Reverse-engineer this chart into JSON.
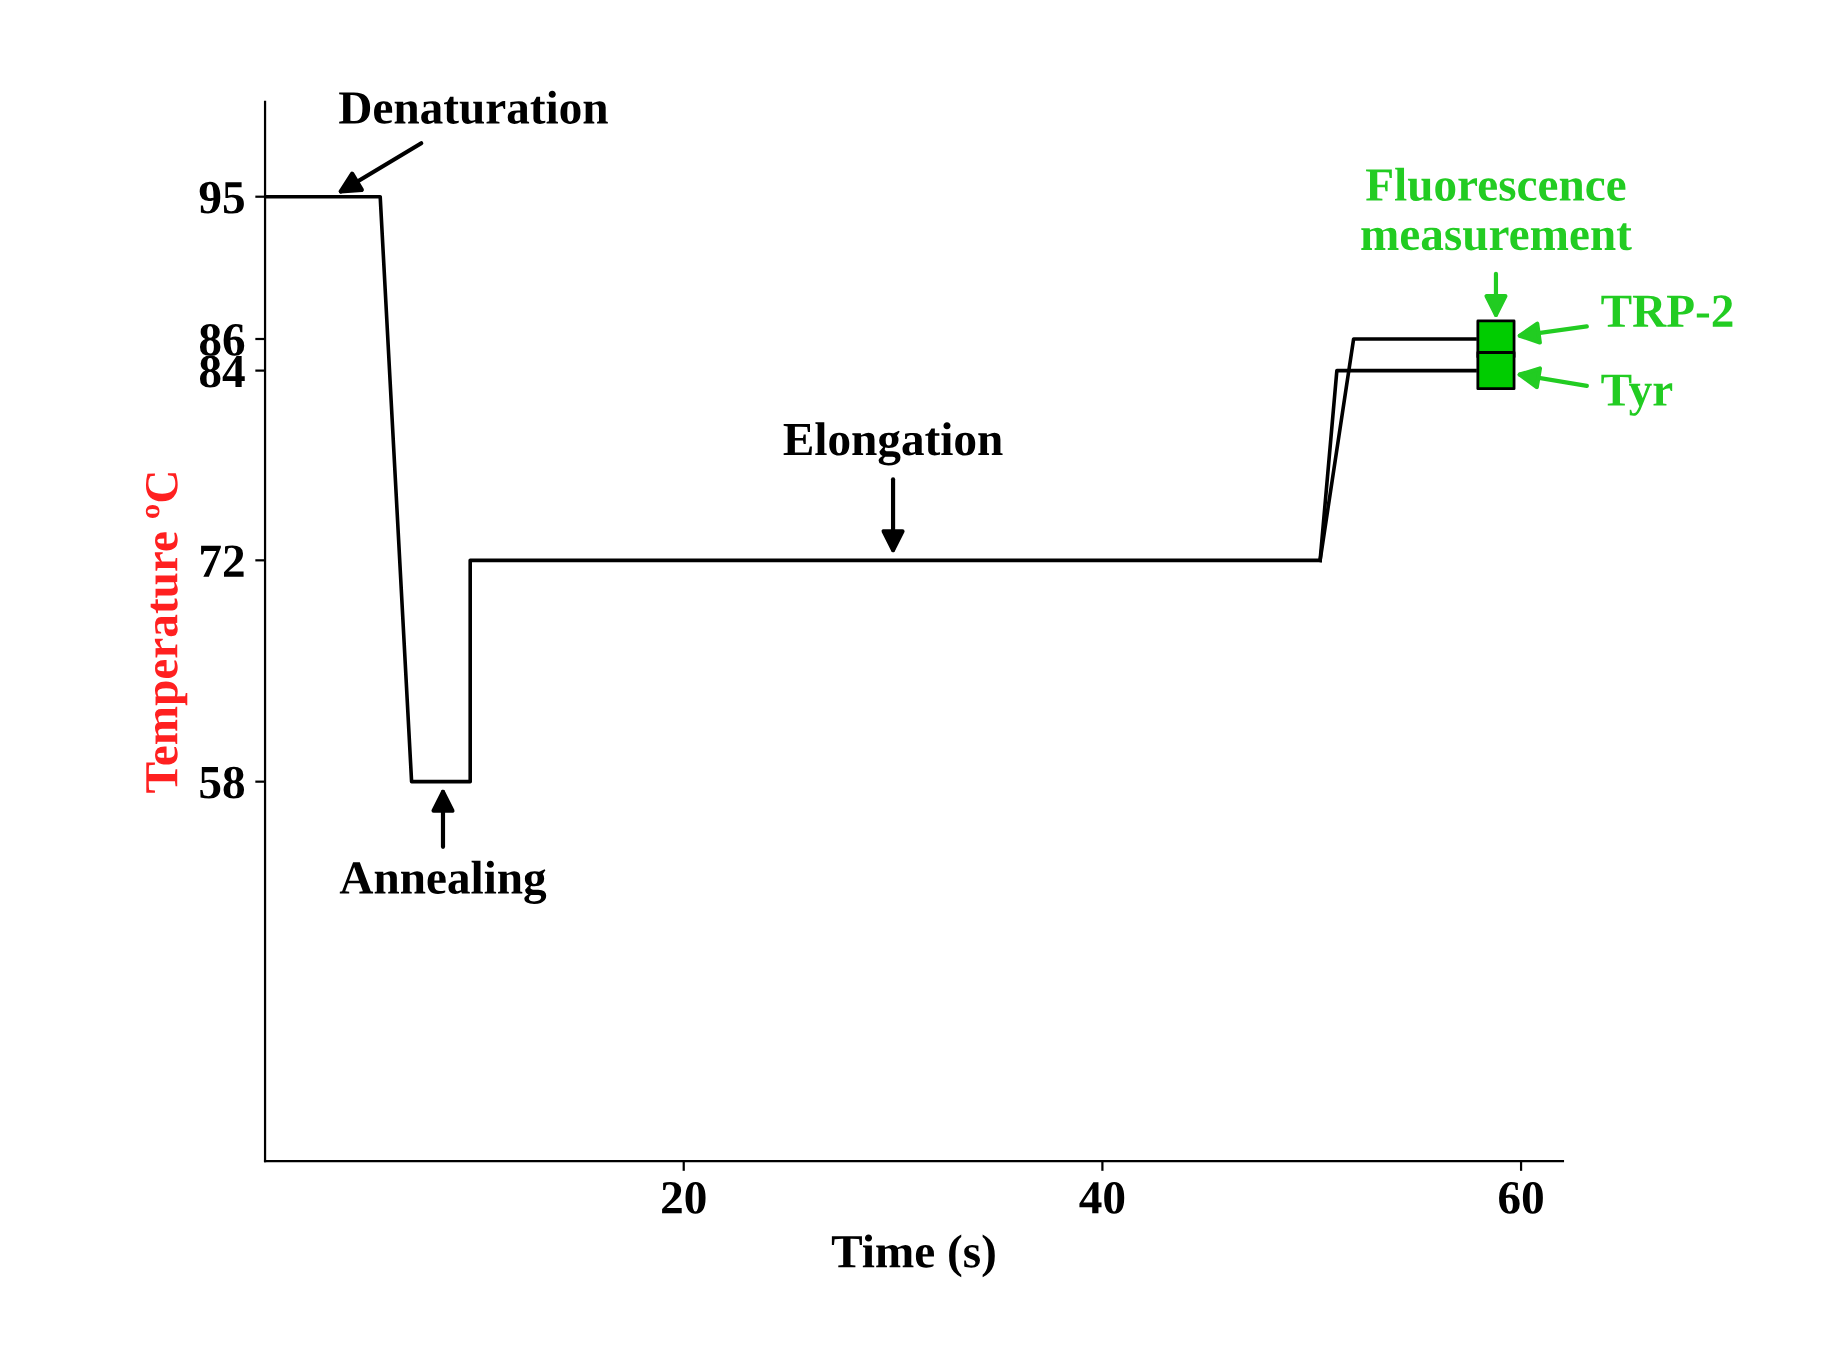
{
  "chart_data": {
    "type": "line",
    "xlabel": "Time (s)",
    "ylabel": "Temperature ºC",
    "xlim": [
      0,
      62
    ],
    "xticks": [
      20,
      40,
      60
    ],
    "ylim": [
      34,
      101
    ],
    "yticks": [
      58,
      72,
      84,
      86,
      95
    ],
    "grid": false,
    "legend": false,
    "marker": "none",
    "line_style": "solid",
    "series": [
      {
        "color": "#000000",
        "x": [
          0,
          5.5,
          7,
          9.8,
          9.8,
          50.4
        ],
        "values": [
          95,
          95,
          58,
          58,
          72,
          72
        ]
      },
      {
        "color": "#000000",
        "x": [
          50.4,
          52,
          57.8
        ],
        "values": [
          72,
          86,
          86
        ]
      },
      {
        "color": "#000000",
        "x": [
          50.4,
          51.2,
          57.8
        ],
        "values": [
          72,
          84,
          84
        ]
      },
      {
        "type": "scatter",
        "marker": "square",
        "color": "#00cc00",
        "x": [
          58.8
        ],
        "values": [
          86
        ]
      },
      {
        "type": "scatter",
        "marker": "square",
        "color": "#00cc00",
        "x": [
          58.8
        ],
        "values": [
          84
        ]
      }
    ],
    "annotations": [
      {
        "text": "Denaturation",
        "x": 2.5,
        "y": 95
      },
      {
        "text": "Annealing",
        "x": 8.5,
        "y": 58
      },
      {
        "text": "Elongation",
        "x": 30,
        "y": 72
      },
      {
        "text": "Fluorescence\nmeasurement",
        "x": 58.8,
        "y": 86
      },
      {
        "text": "TRP-2",
        "x": 58.8,
        "y": 86
      },
      {
        "text": "Tyr",
        "x": 58.8,
        "y": 84
      }
    ]
  }
}
